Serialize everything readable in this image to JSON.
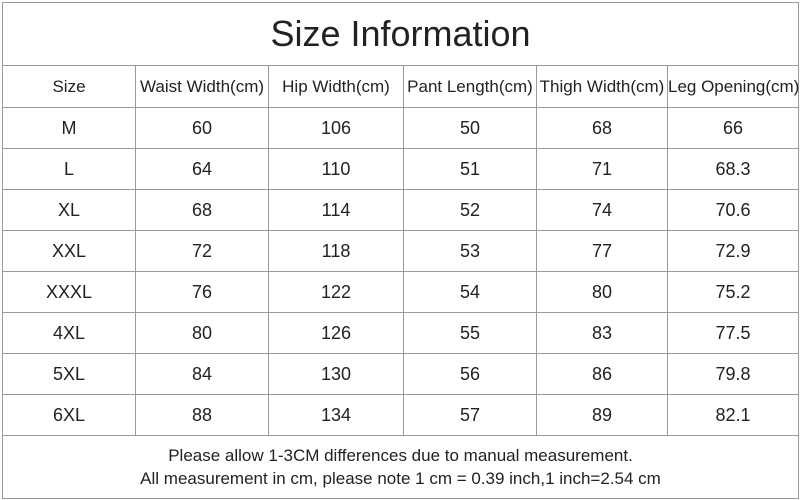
{
  "header": {
    "title": "Size Information"
  },
  "table": {
    "columns": [
      "Size",
      "Waist Width(cm)",
      "Hip Width(cm)",
      "Pant Length(cm)",
      "Thigh Width(cm)",
      "Leg Opening(cm)"
    ],
    "rows": [
      [
        "M",
        60,
        106,
        50,
        68,
        66
      ],
      [
        "L",
        64,
        110,
        51,
        71,
        68.3
      ],
      [
        "XL",
        68,
        114,
        52,
        74,
        70.6
      ],
      [
        "XXL",
        72,
        118,
        53,
        77,
        72.9
      ],
      [
        "XXXL",
        76,
        122,
        54,
        80,
        75.2
      ],
      [
        "4XL",
        80,
        126,
        55,
        83,
        77.5
      ],
      [
        "5XL",
        84,
        130,
        56,
        86,
        79.8
      ],
      [
        "6XL",
        88,
        134,
        57,
        89,
        82.1
      ]
    ]
  },
  "footer": {
    "lines": [
      "Please allow 1-3CM differences due to manual measurement.",
      "All measurement in cm, please note 1 cm = 0.39 inch,1 inch=2.54 cm"
    ]
  }
}
